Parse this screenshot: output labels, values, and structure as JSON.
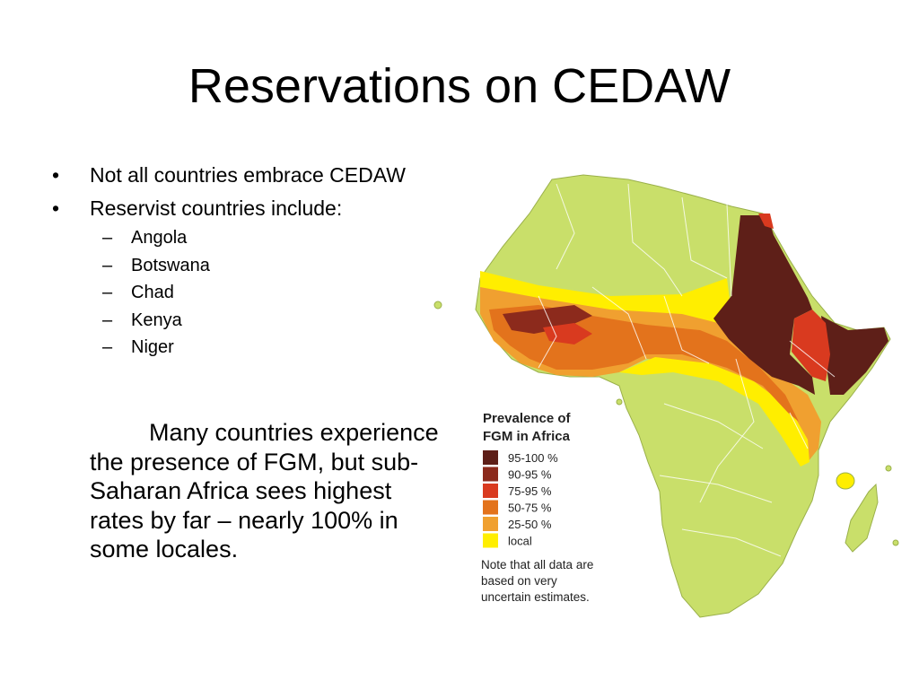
{
  "slide": {
    "title": "Reservations on CEDAW"
  },
  "bullets": {
    "item1": "Not all countries embrace CEDAW",
    "item2": "Reservist countries include:",
    "countries": [
      "Angola",
      "Botswana",
      "Chad",
      "Kenya",
      "Niger"
    ]
  },
  "paragraph": "Many countries experience the presence of FGM, but sub-Saharan Africa sees highest rates by far – nearly 100% in some locales.",
  "map": {
    "legend_title_line1": "Prevalence of",
    "legend_title_line2": "FGM in Africa",
    "legend": [
      {
        "label": "95-100 %",
        "color": "#5e1f18"
      },
      {
        "label": "90-95 %",
        "color": "#8c2a1c"
      },
      {
        "label": "75-95 %",
        "color": "#d93a1f"
      },
      {
        "label": "50-75 %",
        "color": "#e3731c"
      },
      {
        "label": "25-50 %",
        "color": "#f0a030"
      },
      {
        "label": "local",
        "color": "#ffee00"
      }
    ],
    "note_line1": "Note that all data are",
    "note_line2": "based on very",
    "note_line3": "uncertain estimates.",
    "colors": {
      "land": "#c9df6a",
      "border": "#ffffff"
    }
  }
}
